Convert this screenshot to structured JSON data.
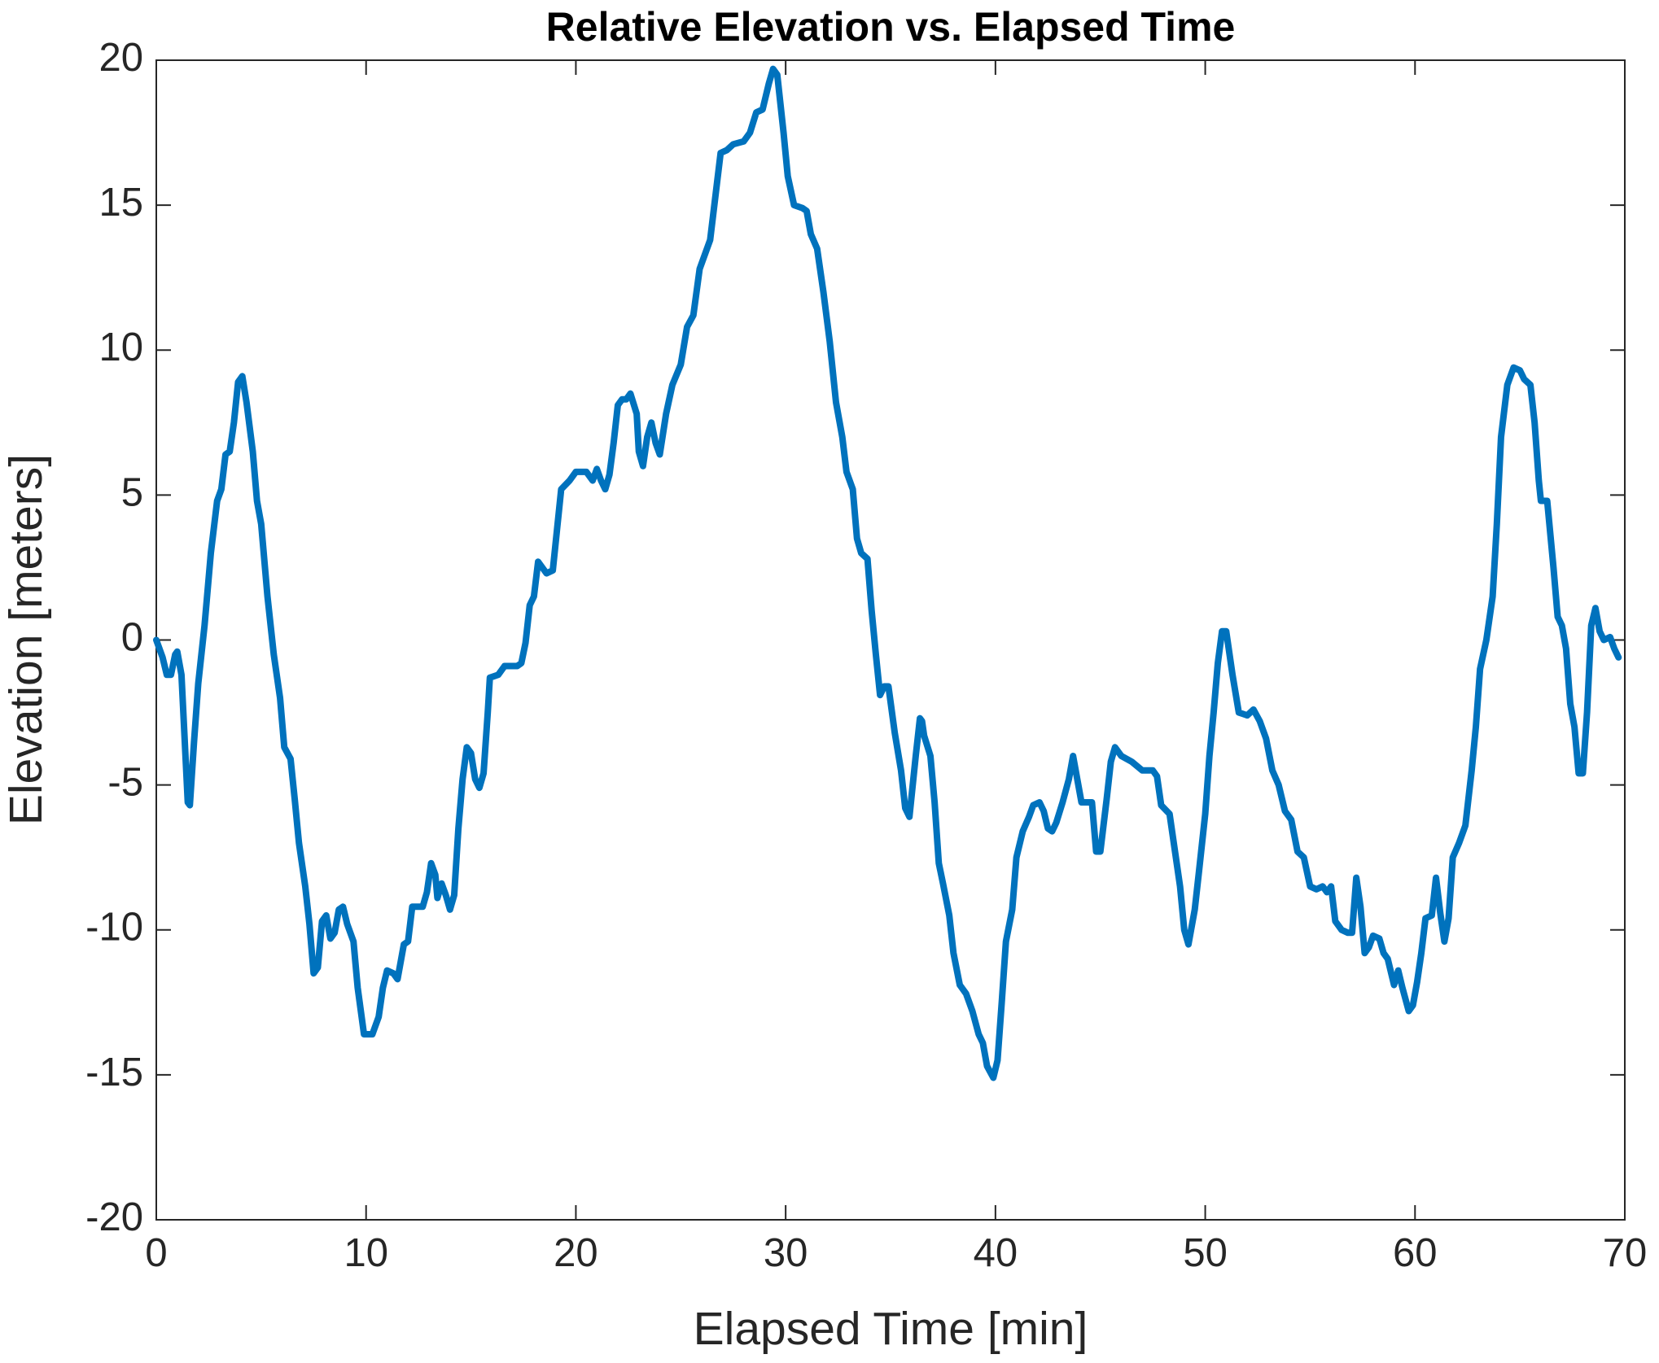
{
  "chart_data": {
    "type": "line",
    "title": "Relative Elevation vs. Elapsed Time",
    "x_label": "Elapsed Time [min]",
    "y_label": "Elevation [meters]",
    "color": "#0072bd",
    "xlim": [
      0,
      70
    ],
    "xticks": [
      0,
      10,
      20,
      30,
      40,
      50,
      60,
      70
    ],
    "ylim": [
      -20,
      20
    ],
    "yticks": [
      -20,
      -15,
      -10,
      -5,
      0,
      5,
      10,
      15,
      20
    ],
    "grid": false,
    "x": [
      0,
      0.3,
      0.5,
      0.7,
      0.9,
      1.0,
      1.2,
      1.5,
      1.6,
      1.8,
      2.0,
      2.3,
      2.6,
      2.9,
      3.1,
      3.3,
      3.5,
      3.7,
      3.9,
      4.1,
      4.3,
      4.6,
      4.8,
      5.0,
      5.3,
      5.6,
      5.9,
      6.1,
      6.4,
      6.6,
      6.8,
      7.1,
      7.3,
      7.5,
      7.7,
      7.9,
      8.1,
      8.3,
      8.5,
      8.7,
      8.9,
      9.1,
      9.4,
      9.6,
      9.9,
      10.3,
      10.6,
      10.8,
      11.0,
      11.3,
      11.5,
      11.8,
      12.0,
      12.2,
      12.7,
      12.9,
      13.1,
      13.3,
      13.4,
      13.6,
      13.8,
      14.0,
      14.2,
      14.4,
      14.6,
      14.8,
      15.0,
      15.2,
      15.4,
      15.6,
      15.8,
      15.9,
      16.3,
      16.6,
      17.2,
      17.4,
      17.6,
      17.8,
      18.0,
      18.2,
      18.4,
      18.6,
      18.9,
      19.1,
      19.3,
      19.7,
      20.0,
      20.5,
      20.8,
      21.0,
      21.2,
      21.4,
      21.6,
      21.8,
      22.0,
      22.2,
      22.4,
      22.6,
      22.9,
      23.0,
      23.2,
      23.4,
      23.6,
      23.8,
      24.0,
      24.3,
      24.6,
      25.0,
      25.3,
      25.6,
      25.9,
      26.2,
      26.4,
      26.6,
      26.9,
      27.2,
      27.5,
      28.0,
      28.3,
      28.6,
      28.9,
      29.2,
      29.4,
      29.6,
      29.9,
      30.1,
      30.4,
      30.8,
      31.0,
      31.2,
      31.5,
      31.8,
      32.1,
      32.4,
      32.7,
      32.9,
      33.2,
      33.4,
      33.6,
      33.9,
      34.1,
      34.3,
      34.5,
      34.7,
      34.9,
      35.2,
      35.5,
      35.7,
      35.9,
      36.2,
      36.4,
      36.5,
      36.6,
      36.9,
      37.1,
      37.3,
      37.5,
      37.8,
      38.0,
      38.3,
      38.6,
      38.9,
      39.2,
      39.4,
      39.6,
      39.9,
      40.1,
      40.3,
      40.5,
      40.8,
      41.0,
      41.3,
      41.6,
      41.8,
      42.1,
      42.3,
      42.5,
      42.7,
      42.9,
      43.2,
      43.5,
      43.7,
      43.9,
      44.1,
      44.6,
      44.8,
      45.0,
      45.3,
      45.5,
      45.7,
      46.0,
      46.5,
      47.0,
      47.5,
      47.7,
      47.9,
      48.3,
      48.5,
      48.8,
      49.0,
      49.2,
      49.5,
      49.7,
      50.0,
      50.2,
      50.4,
      50.6,
      50.8,
      51.0,
      51.3,
      51.6,
      52.0,
      52.3,
      52.6,
      52.9,
      53.2,
      53.5,
      53.8,
      54.1,
      54.4,
      54.7,
      55.0,
      55.3,
      55.6,
      55.8,
      56.0,
      56.2,
      56.5,
      56.8,
      57.0,
      57.2,
      57.4,
      57.6,
      57.8,
      58.0,
      58.3,
      58.5,
      58.7,
      59.0,
      59.2,
      59.4,
      59.7,
      59.9,
      60.1,
      60.3,
      60.5,
      60.8,
      61.0,
      61.2,
      61.4,
      61.6,
      61.8,
      62.1,
      62.4,
      62.7,
      62.9,
      63.1,
      63.4,
      63.7,
      63.9,
      64.1,
      64.4,
      64.7,
      65.0,
      65.2,
      65.5,
      65.7,
      65.9,
      66.0,
      66.3,
      66.6,
      66.8,
      67.0,
      67.2,
      67.4,
      67.6,
      67.8,
      68.0,
      68.2,
      68.4,
      68.6,
      68.8,
      69.0,
      69.3,
      69.5,
      69.7
    ],
    "values": [
      0,
      -0.6,
      -1.2,
      -1.2,
      -0.5,
      -0.4,
      -1.2,
      -5.6,
      -5.7,
      -3.5,
      -1.5,
      0.5,
      3,
      4.8,
      5.2,
      6.4,
      6.5,
      7.5,
      8.9,
      9.1,
      8.2,
      6.5,
      4.8,
      4,
      1.5,
      -0.5,
      -2,
      -3.7,
      -4.1,
      -5.5,
      -7,
      -8.5,
      -9.8,
      -11.5,
      -11.3,
      -9.7,
      -9.5,
      -10.3,
      -10.1,
      -9.3,
      -9.2,
      -9.8,
      -10.4,
      -12,
      -13.6,
      -13.6,
      -13,
      -12,
      -11.4,
      -11.5,
      -11.7,
      -10.5,
      -10.4,
      -9.2,
      -9.2,
      -8.7,
      -7.7,
      -8.1,
      -8.9,
      -8.4,
      -8.8,
      -9.3,
      -8.8,
      -6.5,
      -4.8,
      -3.7,
      -3.9,
      -4.8,
      -5.1,
      -4.6,
      -2.5,
      -1.3,
      -1.2,
      -0.9,
      -0.9,
      -0.8,
      -0.1,
      1.2,
      1.5,
      2.7,
      2.5,
      2.3,
      2.4,
      3.8,
      5.2,
      5.5,
      5.8,
      5.8,
      5.5,
      5.9,
      5.5,
      5.2,
      5.7,
      6.8,
      8.1,
      8.3,
      8.3,
      8.5,
      7.8,
      6.5,
      6,
      7.0,
      7.5,
      6.8,
      6.4,
      7.8,
      8.8,
      9.5,
      10.8,
      11.2,
      12.8,
      13.4,
      13.8,
      15,
      16.8,
      16.9,
      17.1,
      17.2,
      17.5,
      18.2,
      18.3,
      19.2,
      19.7,
      19.5,
      17.5,
      16,
      15,
      14.9,
      14.8,
      14,
      13.5,
      12,
      10.3,
      8.2,
      7,
      5.8,
      5.2,
      3.5,
      3,
      2.8,
      1,
      -0.5,
      -1.9,
      -1.6,
      -1.6,
      -3.2,
      -4.5,
      -5.8,
      -6.1,
      -4,
      -2.7,
      -2.8,
      -3.3,
      -4,
      -5.6,
      -7.7,
      -8.4,
      -9.5,
      -10.8,
      -11.9,
      -12.2,
      -12.8,
      -13.6,
      -13.9,
      -14.7,
      -15.1,
      -14.5,
      -12.5,
      -10.4,
      -9.3,
      -7.5,
      -6.6,
      -6.1,
      -5.7,
      -5.6,
      -5.9,
      -6.5,
      -6.6,
      -6.3,
      -5.6,
      -4.8,
      -4,
      -4.8,
      -5.6,
      -5.6,
      -7.3,
      -7.3,
      -5.5,
      -4.2,
      -3.7,
      -4.0,
      -4.2,
      -4.5,
      -4.5,
      -4.7,
      -5.7,
      -6,
      -7,
      -8.5,
      -10,
      -10.5,
      -9.3,
      -8,
      -6,
      -4,
      -2.5,
      -0.8,
      0.3,
      0.3,
      -1.2,
      -2.5,
      -2.6,
      -2.4,
      -2.8,
      -3.4,
      -4.5,
      -5,
      -5.9,
      -6.2,
      -7.3,
      -7.5,
      -8.5,
      -8.6,
      -8.5,
      -8.7,
      -8.5,
      -9.7,
      -10,
      -10.1,
      -10.1,
      -8.2,
      -9.2,
      -10.8,
      -10.6,
      -10.2,
      -10.3,
      -10.8,
      -11,
      -11.9,
      -11.4,
      -12,
      -12.8,
      -12.6,
      -11.8,
      -10.8,
      -9.6,
      -9.5,
      -8.2,
      -9.4,
      -10.4,
      -9.6,
      -7.5,
      -7,
      -6.4,
      -4.5,
      -3,
      -1,
      0,
      1.5,
      4,
      7,
      8.8,
      9.4,
      9.3,
      9,
      8.8,
      7.5,
      5.5,
      4.8,
      4.8,
      2.5,
      0.8,
      0.5,
      -0.3,
      -2.2,
      -3,
      -4.6,
      -4.6,
      -2.5,
      0.5,
      1.1,
      0.3,
      0,
      0.1,
      -0.3,
      -0.6
    ]
  }
}
